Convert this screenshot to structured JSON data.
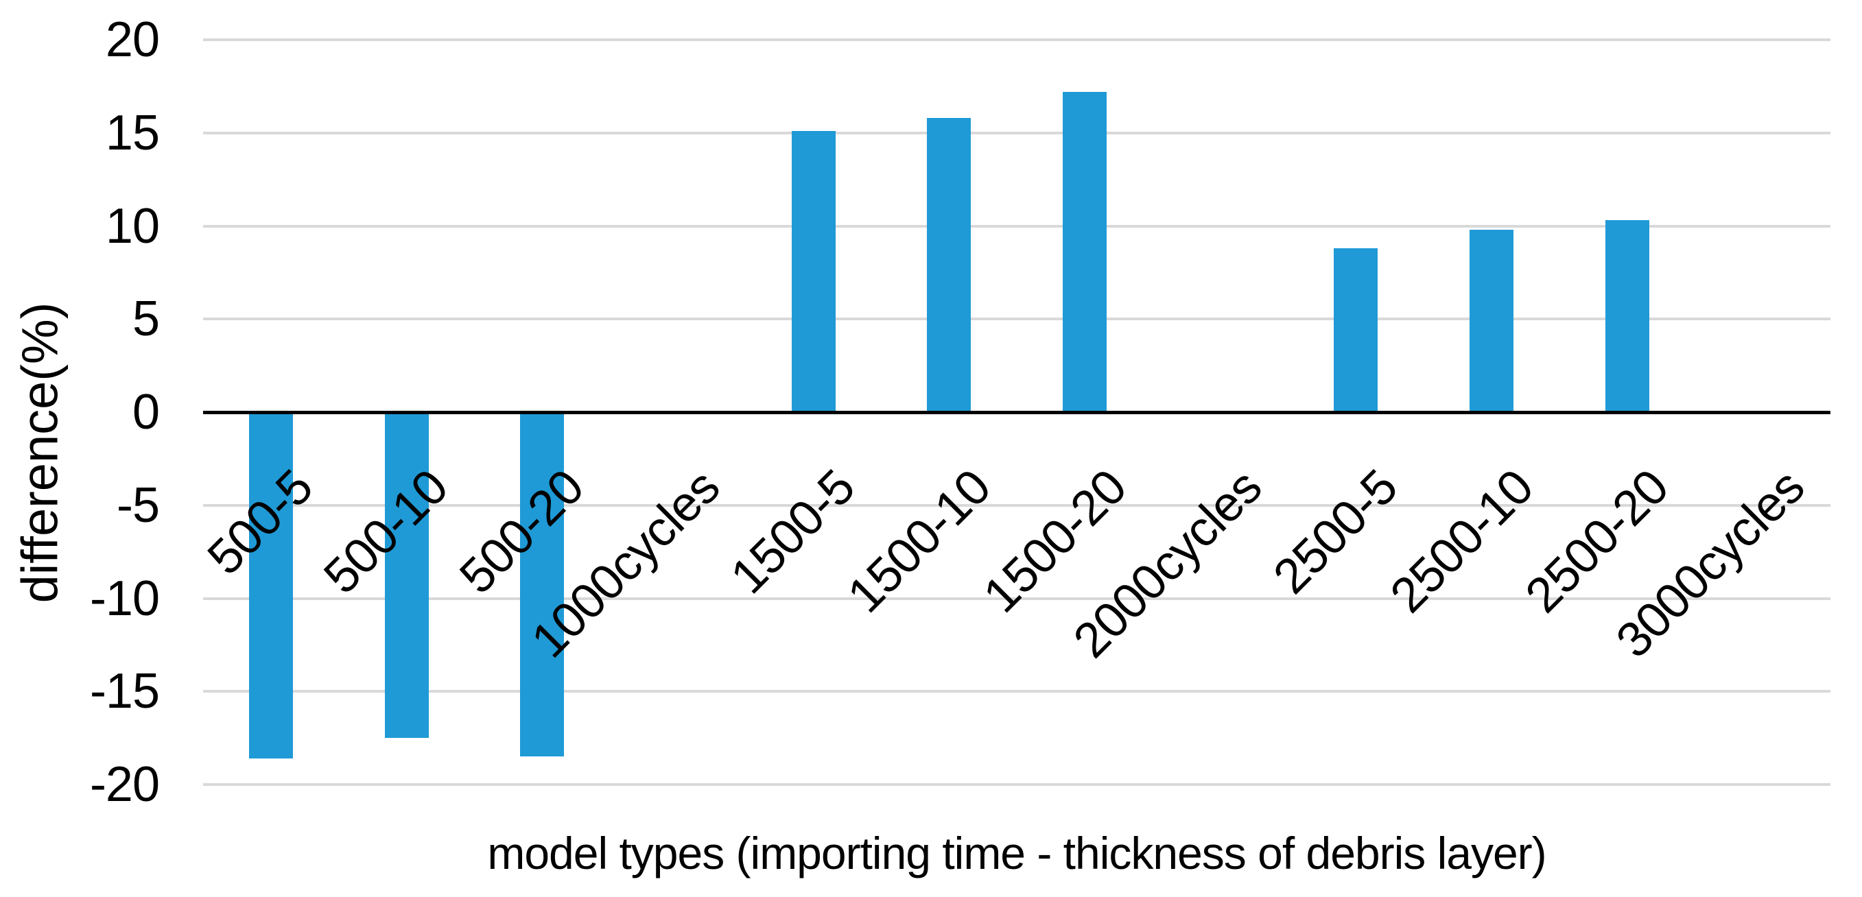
{
  "chart_data": {
    "type": "bar",
    "title": "",
    "xlabel": "model types (importing time - thickness of debris layer)",
    "ylabel": "difference(%)",
    "categories": [
      "500-5",
      "500-10",
      "500-20",
      "1000cycles",
      "1500-5",
      "1500-10",
      "1500-20",
      "2000cycles",
      "2500-5",
      "2500-10",
      "2500-20",
      "3000cycles"
    ],
    "values": [
      -18.6,
      -17.5,
      -18.5,
      0,
      15.1,
      15.8,
      17.2,
      0,
      8.8,
      9.8,
      10.3,
      0
    ],
    "ylim": [
      -20,
      20
    ],
    "yticks": [
      20,
      15,
      10,
      5,
      0,
      -5,
      -10,
      -15,
      -20
    ],
    "x_tick_rotation_deg": 45,
    "grid": "horizontal-gridlines-on",
    "legend": "none",
    "bar_color": "#1F9AD6",
    "gridline_color": "#D9D9D9",
    "axis_color": "#000000",
    "text_color": "#000000",
    "background_color": "#FFFFFF"
  }
}
